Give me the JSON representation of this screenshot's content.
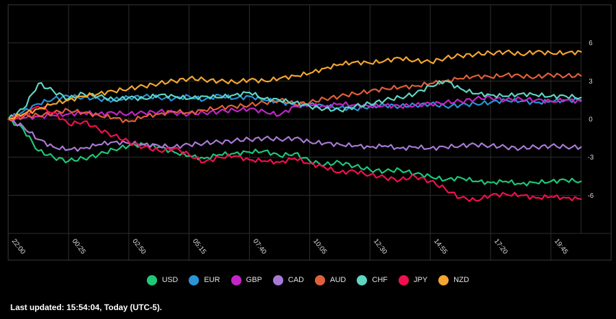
{
  "colors": {
    "background": "#000000",
    "grid": "#2e2e2e",
    "frame": "#3a3a3a"
  },
  "footer": {
    "text": "Last updated: 15:54:04, Today (UTC-5)."
  },
  "chart_data": {
    "type": "line",
    "grid": true,
    "legend_position": "bottom-center",
    "ylim": [
      -9,
      9
    ],
    "y_ticks": [
      6,
      3,
      0,
      -3,
      -6
    ],
    "x_ticks": [
      "22:00",
      "00:25",
      "02:50",
      "05:15",
      "07:40",
      "10:05",
      "12:30",
      "14:55",
      "17:20",
      "19:45"
    ],
    "x_tick_index": [
      0,
      1,
      2,
      3,
      4,
      5,
      6,
      7,
      8,
      9
    ],
    "x": [
      0,
      0.25,
      0.5,
      0.75,
      1,
      1.25,
      1.5,
      1.75,
      2,
      2.25,
      2.5,
      2.75,
      3,
      3.25,
      3.5,
      3.75,
      4,
      4.25,
      4.5,
      4.75,
      5,
      5.25,
      5.5,
      5.75,
      6,
      6.25,
      6.5,
      6.75,
      7,
      7.25,
      7.5,
      7.75,
      8,
      8.25,
      8.5,
      8.75,
      9,
      9.25,
      9.5
    ],
    "series": [
      {
        "name": "USD",
        "color": "#1ec878",
        "values": [
          0,
          -0.8,
          -2.5,
          -3.0,
          -3.3,
          -3.1,
          -2.8,
          -2.4,
          -2.1,
          -2.0,
          -2.2,
          -2.6,
          -2.9,
          -3.1,
          -2.8,
          -2.7,
          -2.6,
          -2.5,
          -2.9,
          -2.7,
          -3.3,
          -3.6,
          -3.4,
          -3.7,
          -4.0,
          -4.1,
          -4.0,
          -4.3,
          -4.5,
          -4.8,
          -4.6,
          -4.9,
          -5.0,
          -4.9,
          -5.1,
          -5.0,
          -4.9,
          -4.8,
          -4.9
        ]
      },
      {
        "name": "EUR",
        "color": "#2a94d6",
        "values": [
          0,
          0.6,
          1.2,
          1.6,
          1.8,
          1.7,
          1.6,
          1.5,
          1.7,
          1.8,
          1.7,
          1.6,
          1.8,
          1.5,
          1.9,
          1.6,
          1.8,
          1.5,
          1.4,
          1.1,
          1.2,
          1.0,
          0.9,
          0.8,
          1.0,
          1.1,
          1.0,
          1.1,
          1.2,
          1.0,
          1.1,
          1.2,
          1.3,
          1.5,
          1.4,
          1.3,
          1.4,
          1.5,
          1.5
        ]
      },
      {
        "name": "GBP",
        "color": "#c425c8",
        "values": [
          0,
          0.1,
          0.2,
          0.3,
          0.4,
          0.5,
          0.4,
          0.5,
          0.4,
          0.5,
          0.6,
          0.5,
          0.4,
          0.5,
          0.6,
          0.7,
          0.8,
          0.6,
          0.3,
          1.0,
          1.1,
          1.0,
          1.2,
          1.1,
          1.0,
          1.1,
          1.0,
          1.1,
          1.2,
          1.3,
          1.4,
          1.6,
          1.7,
          1.5,
          1.6,
          1.5,
          1.4,
          1.5,
          1.4
        ]
      },
      {
        "name": "CAD",
        "color": "#a87ad6",
        "values": [
          0,
          -0.6,
          -1.6,
          -2.2,
          -2.4,
          -2.3,
          -2.0,
          -1.8,
          -1.9,
          -2.0,
          -2.1,
          -2.2,
          -2.0,
          -1.9,
          -1.8,
          -1.7,
          -1.6,
          -1.5,
          -1.6,
          -1.5,
          -1.8,
          -1.9,
          -2.0,
          -2.1,
          -2.2,
          -2.1,
          -2.3,
          -2.2,
          -2.3,
          -2.2,
          -2.1,
          -2.0,
          -2.1,
          -2.2,
          -2.3,
          -2.2,
          -2.1,
          -2.2,
          -2.2
        ]
      },
      {
        "name": "AUD",
        "color": "#e0603a",
        "values": [
          0,
          0.2,
          0.3,
          0.5,
          0.7,
          0.5,
          0.3,
          0.1,
          -0.2,
          0.2,
          0.4,
          0.6,
          0.5,
          0.7,
          0.9,
          1.0,
          1.1,
          1.3,
          1.5,
          1.2,
          1.3,
          1.6,
          1.8,
          2.0,
          2.2,
          2.4,
          2.5,
          2.6,
          2.8,
          3.0,
          3.2,
          3.4,
          3.3,
          3.5,
          3.4,
          3.3,
          3.5,
          3.4,
          3.4
        ]
      },
      {
        "name": "CHF",
        "color": "#5fd6c4",
        "values": [
          0,
          0.8,
          2.8,
          2.2,
          1.6,
          2.0,
          1.8,
          1.5,
          1.7,
          1.6,
          1.9,
          1.8,
          1.6,
          1.8,
          1.7,
          1.9,
          2.1,
          1.6,
          1.5,
          1.3,
          1.0,
          0.8,
          0.7,
          1.0,
          1.2,
          1.5,
          1.7,
          2.0,
          2.6,
          3.0,
          2.4,
          2.0,
          1.9,
          1.8,
          2.0,
          1.9,
          1.8,
          1.8,
          1.7
        ]
      },
      {
        "name": "JPY",
        "color": "#f0104f",
        "values": [
          0,
          0.3,
          1.0,
          0.5,
          -0.4,
          -0.2,
          -0.8,
          -1.3,
          -1.8,
          -2.2,
          -2.5,
          -2.3,
          -2.8,
          -3.4,
          -3.0,
          -2.9,
          -3.2,
          -3.3,
          -3.4,
          -3.1,
          -3.5,
          -3.8,
          -4.2,
          -4.1,
          -4.4,
          -4.6,
          -4.8,
          -4.5,
          -4.9,
          -5.5,
          -6.2,
          -6.4,
          -6.0,
          -5.9,
          -6.0,
          -6.2,
          -6.1,
          -6.2,
          -6.3
        ]
      },
      {
        "name": "NZD",
        "color": "#f5a630",
        "values": [
          0,
          0.4,
          0.8,
          1.2,
          1.5,
          1.8,
          2.0,
          2.2,
          2.4,
          2.6,
          2.8,
          3.0,
          3.2,
          3.1,
          3.0,
          2.9,
          3.1,
          3.0,
          3.2,
          3.4,
          3.6,
          4.0,
          4.3,
          4.5,
          4.4,
          4.6,
          4.8,
          4.6,
          4.5,
          4.8,
          5.0,
          5.1,
          5.2,
          5.3,
          5.1,
          5.3,
          5.2,
          5.2,
          5.3
        ]
      }
    ]
  }
}
